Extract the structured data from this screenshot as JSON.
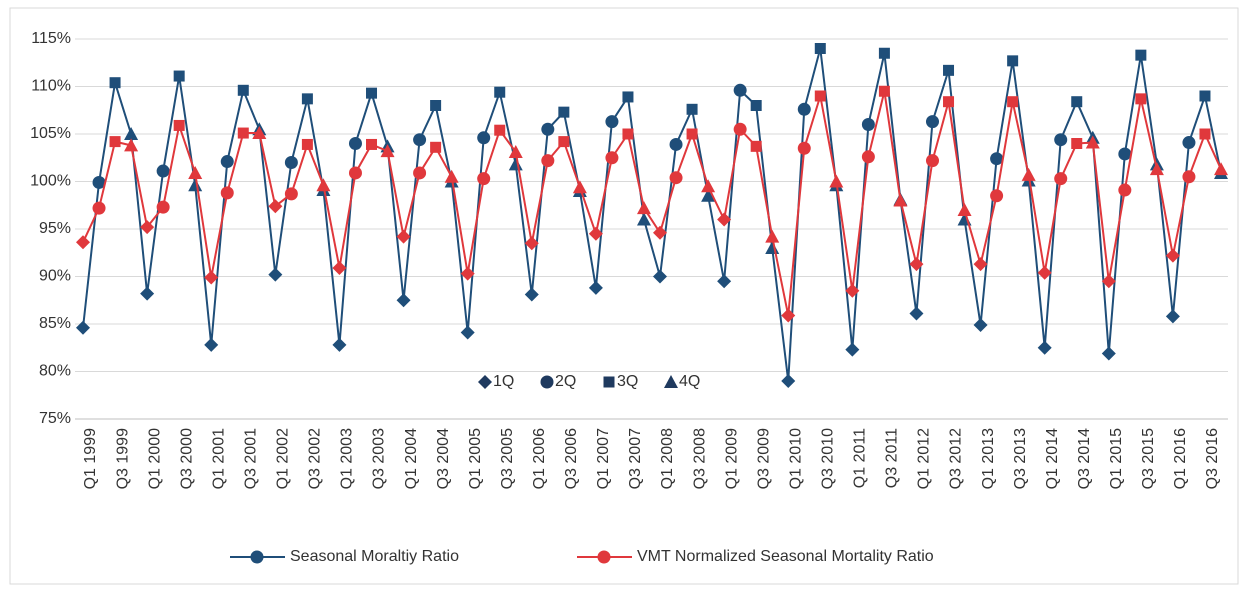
{
  "chart_data": {
    "type": "line",
    "categories": [
      "Q1 1999",
      null,
      "Q3 1999",
      null,
      "Q1 2000",
      null,
      "Q3 2000",
      null,
      "Q1 2001",
      null,
      "Q3 2001",
      null,
      "Q1 2002",
      null,
      "Q3 2002",
      null,
      "Q1 2003",
      null,
      "Q3 2003",
      null,
      "Q1 2004",
      null,
      "Q3 2004",
      null,
      "Q1 2005",
      null,
      "Q3 2005",
      null,
      "Q1 2006",
      null,
      "Q3 2006",
      null,
      "Q1 2007",
      null,
      "Q3 2007",
      null,
      "Q1 2008",
      null,
      "Q3 2008",
      null,
      "Q1 2009",
      null,
      "Q3 2009",
      null,
      "Q1 2010",
      null,
      "Q3 2010",
      null,
      "Q1 2011",
      null,
      "Q3 2011",
      null,
      "Q1 2012",
      null,
      "Q3 2012",
      null,
      "Q1 2013",
      null,
      "Q3 2013",
      null,
      "Q1 2014",
      null,
      "Q3 2014",
      null,
      "Q1 2015",
      null,
      "Q3 2015",
      null,
      "Q1 2016",
      null,
      "Q3 2016",
      null
    ],
    "series": [
      {
        "name": "Seasonal Moraltiy Ratio",
        "color": "#1f4e79",
        "values": [
          84.6,
          99.9,
          110.4,
          105.0,
          88.2,
          101.1,
          111.1,
          99.6,
          82.8,
          102.1,
          109.6,
          105.5,
          90.2,
          102.0,
          108.7,
          99.1,
          82.8,
          104.0,
          109.3,
          103.7,
          87.5,
          104.4,
          108.0,
          100.0,
          84.1,
          104.6,
          109.4,
          101.8,
          88.1,
          105.5,
          107.3,
          99.0,
          88.8,
          106.3,
          108.9,
          96.0,
          90.0,
          103.9,
          107.6,
          98.5,
          89.5,
          109.6,
          108.0,
          93.0,
          79.0,
          107.6,
          114.0,
          99.6,
          82.3,
          106.0,
          113.5,
          98.1,
          86.1,
          106.3,
          111.7,
          96.0,
          84.9,
          102.4,
          112.7,
          100.1,
          82.5,
          104.4,
          108.4,
          104.6,
          81.9,
          102.9,
          113.3,
          101.8,
          85.8,
          104.1,
          109.0,
          100.9
        ]
      },
      {
        "name": "VMT Normalized Seasonal Mortality Ratio",
        "color": "#e0383c",
        "values": [
          93.6,
          97.2,
          104.2,
          103.8,
          95.2,
          97.3,
          105.9,
          100.9,
          89.9,
          98.8,
          105.1,
          105.1,
          97.4,
          98.7,
          103.9,
          99.6,
          90.9,
          100.9,
          103.9,
          103.2,
          94.2,
          100.9,
          103.6,
          100.5,
          90.3,
          100.3,
          105.4,
          103.1,
          93.5,
          102.2,
          104.2,
          99.4,
          94.5,
          102.5,
          105.0,
          97.2,
          94.6,
          100.4,
          105.0,
          99.5,
          96.0,
          105.5,
          103.7,
          94.2,
          85.9,
          103.5,
          109.0,
          100.0,
          88.5,
          102.6,
          109.5,
          98.0,
          91.3,
          102.2,
          108.4,
          97.0,
          91.3,
          98.5,
          108.4,
          100.7,
          90.4,
          100.3,
          104.0,
          104.1,
          89.5,
          99.1,
          108.7,
          101.3,
          92.2,
          100.5,
          105.0,
          101.3
        ]
      }
    ],
    "marker_legend": [
      "1Q",
      "2Q",
      "3Q",
      "4Q"
    ],
    "marker_legend_color": "#1f3a5f",
    "ylim": [
      75,
      115
    ],
    "yticks": [
      {
        "value": 75,
        "label": "75%"
      },
      {
        "value": 80,
        "label": "80%"
      },
      {
        "value": 85,
        "label": "85%"
      },
      {
        "value": 90,
        "label": "90%"
      },
      {
        "value": 95,
        "label": "95%"
      },
      {
        "value": 100,
        "label": "100%"
      },
      {
        "value": 105,
        "label": "105%"
      },
      {
        "value": 110,
        "label": "110%"
      },
      {
        "value": 115,
        "label": "115%"
      }
    ],
    "grid": true,
    "legend": "bottom"
  }
}
